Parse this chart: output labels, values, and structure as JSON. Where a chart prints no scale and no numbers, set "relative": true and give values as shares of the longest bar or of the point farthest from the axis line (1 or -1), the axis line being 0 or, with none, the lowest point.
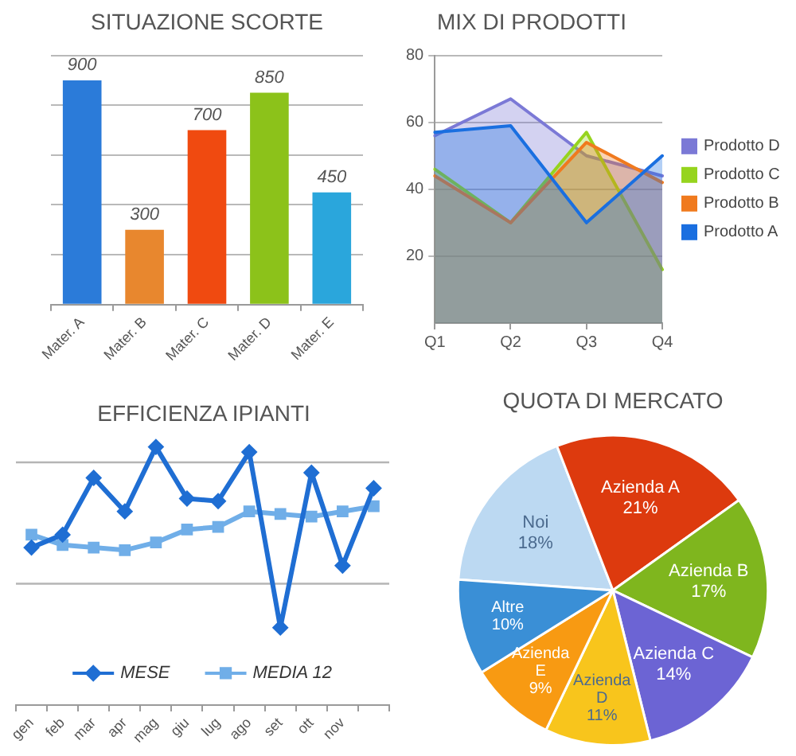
{
  "chart_data": [
    {
      "type": "bar",
      "title": "SITUAZIONE SCORTE",
      "categories": [
        "Mater. A",
        "Mater. B",
        "Mater. C",
        "Mater. D",
        "Mater. E"
      ],
      "values": [
        900,
        300,
        700,
        850,
        450
      ],
      "colors": [
        "#2b7bd9",
        "#e8872e",
        "#f04a10",
        "#8cc21a",
        "#2aa6dc"
      ],
      "data_labels": true,
      "ylim": [
        0,
        1000
      ],
      "yticks": [
        {
          "value": 0,
          "label": null
        },
        {
          "value": 200,
          "label": null
        },
        {
          "value": 400,
          "label": null
        },
        {
          "value": 600,
          "label": null
        },
        {
          "value": 800,
          "label": null
        },
        {
          "value": 1000,
          "label": null
        }
      ],
      "tick_labels": "x",
      "grid": "y"
    },
    {
      "type": "area",
      "title": "MIX DI PRODOTTI",
      "categories": [
        "Q1",
        "Q2",
        "Q3",
        "Q4"
      ],
      "series": [
        {
          "name": "Prodotto A",
          "color": "#1a6fe0",
          "values": [
            57,
            59,
            30,
            50
          ]
        },
        {
          "name": "Prodotto B",
          "color": "#f07a1e",
          "values": [
            44,
            30,
            54,
            42
          ]
        },
        {
          "name": "Prodotto C",
          "color": "#96d41e",
          "values": [
            46,
            30,
            57,
            16
          ]
        },
        {
          "name": "Prodotto D",
          "color": "#7b79d6",
          "values": [
            56,
            67,
            50,
            44
          ]
        }
      ],
      "ylim": [
        0,
        80
      ],
      "yticks": [
        20,
        40,
        60,
        80
      ],
      "grid": "y",
      "legend": "right"
    },
    {
      "type": "line",
      "title": "EFFICIENZA IPIANTI",
      "categories": [
        "gen",
        "feb",
        "mar",
        "apr",
        "mag",
        "giu",
        "lug",
        "ago",
        "set",
        "ott",
        "nov",
        null
      ],
      "relative": true,
      "series": [
        {
          "name": "MESE",
          "color": "#1f6ed3",
          "marker": "diamond",
          "values": [
            0.61,
            0.66,
            0.88,
            0.75,
            1,
            0.8,
            0.79,
            0.98,
            0.3,
            0.9,
            0.54,
            0.84
          ]
        },
        {
          "name": "MEDIA 12",
          "color": "#70aee8",
          "marker": "square",
          "values": [
            0.66,
            0.62,
            0.61,
            0.6,
            0.63,
            0.68,
            0.69,
            0.75,
            0.74,
            0.73,
            0.75,
            0.77
          ]
        }
      ],
      "ref_lines": [
        {
          "axis": "y",
          "value": 0.47,
          "color": "#b5b5b5"
        },
        {
          "axis": "y",
          "value": 0.94,
          "color": "#b5b5b5"
        }
      ],
      "legend": "bottom"
    },
    {
      "type": "pie",
      "title": "QUOTA DI MERCATO",
      "categories": [
        "Noi",
        "Azienda A",
        "Azienda B",
        "Azienda C",
        "Azienda D",
        "Azienda E",
        "Altre"
      ],
      "values": [
        18,
        21,
        17,
        14,
        11,
        9,
        10
      ],
      "colors": [
        "#bcd9f2",
        "#dd3a0e",
        "#7fb61e",
        "#6c64d4",
        "#f8c51c",
        "#f89a12",
        "#3a8fd6"
      ],
      "value_labels": [
        "18%",
        "21%",
        "17%",
        "14%",
        "11%",
        "9%",
        "10%"
      ]
    }
  ]
}
